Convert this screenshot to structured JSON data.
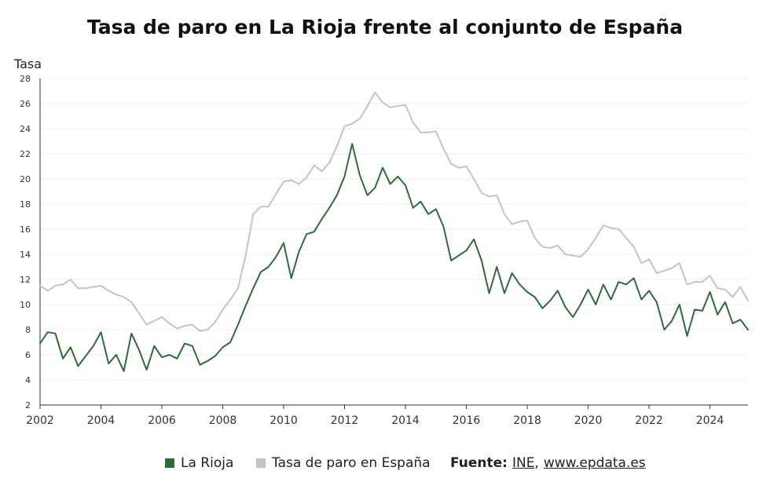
{
  "title": "Tasa de paro en La Rioja frente al conjunto de España",
  "legend": {
    "series1": "La Rioja",
    "series2": "Tasa de paro en España",
    "source_label": "Fuente:",
    "source_ine": "INE",
    "source_sep": ",",
    "source_site": "www.epdata.es"
  },
  "colors": {
    "rioja": "#2e6b36",
    "spain": "#c4c4c4",
    "axis": "#333333",
    "grid": "#ececec"
  },
  "chart_data": {
    "type": "line",
    "ylabel": "Tasa",
    "ylim": [
      2,
      28
    ],
    "yticks": [
      2,
      4,
      6,
      8,
      10,
      12,
      14,
      16,
      18,
      20,
      22,
      24,
      26,
      28
    ],
    "xlim": [
      2002,
      2025.25
    ],
    "xticks": [
      2002,
      2004,
      2006,
      2008,
      2010,
      2012,
      2014,
      2016,
      2018,
      2020,
      2022,
      2024
    ],
    "grid": true,
    "legend": "bottom",
    "series": [
      {
        "name": "La Rioja",
        "x": [
          2002.0,
          2002.25,
          2002.5,
          2002.75,
          2003.0,
          2003.25,
          2003.5,
          2003.75,
          2004.0,
          2004.25,
          2004.5,
          2004.75,
          2005.0,
          2005.25,
          2005.5,
          2005.75,
          2006.0,
          2006.25,
          2006.5,
          2006.75,
          2007.0,
          2007.25,
          2007.5,
          2007.75,
          2008.0,
          2008.25,
          2008.5,
          2008.75,
          2009.0,
          2009.25,
          2009.5,
          2009.75,
          2010.0,
          2010.25,
          2010.5,
          2010.75,
          2011.0,
          2011.25,
          2011.5,
          2011.75,
          2012.0,
          2012.25,
          2012.5,
          2012.75,
          2013.0,
          2013.25,
          2013.5,
          2013.75,
          2014.0,
          2014.25,
          2014.5,
          2014.75,
          2015.0,
          2015.25,
          2015.5,
          2015.75,
          2016.0,
          2016.25,
          2016.5,
          2016.75,
          2017.0,
          2017.25,
          2017.5,
          2017.75,
          2018.0,
          2018.25,
          2018.5,
          2018.75,
          2019.0,
          2019.25,
          2019.5,
          2019.75,
          2020.0,
          2020.25,
          2020.5,
          2020.75,
          2021.0,
          2021.25,
          2021.5,
          2021.75,
          2022.0,
          2022.25,
          2022.5,
          2022.75,
          2023.0,
          2023.25,
          2023.5,
          2023.75,
          2024.0,
          2024.25,
          2024.5,
          2024.75,
          2025.0,
          2025.25
        ],
        "y": [
          6.9,
          7.8,
          7.7,
          5.7,
          6.6,
          5.1,
          5.9,
          6.7,
          7.8,
          5.3,
          6.0,
          4.7,
          7.7,
          6.4,
          4.8,
          6.7,
          5.8,
          6.0,
          5.7,
          6.9,
          6.7,
          5.2,
          5.5,
          5.9,
          6.6,
          7.0,
          8.4,
          9.9,
          11.3,
          12.6,
          13.0,
          13.8,
          14.9,
          12.1,
          14.2,
          15.6,
          15.8,
          16.8,
          17.7,
          18.7,
          20.2,
          22.8,
          20.3,
          18.7,
          19.3,
          20.9,
          19.6,
          20.2,
          19.5,
          17.7,
          18.2,
          17.2,
          17.6,
          16.2,
          13.5,
          13.9,
          14.3,
          15.2,
          13.5,
          10.9,
          13.0,
          10.9,
          12.5,
          11.6,
          11.0,
          10.6,
          9.7,
          10.3,
          11.1,
          9.8,
          9.0,
          10.0,
          11.2,
          10.0,
          11.6,
          10.4,
          11.8,
          11.6,
          12.1,
          10.4,
          11.1,
          10.2,
          8.0,
          8.7,
          10.0,
          7.5,
          9.6,
          9.5,
          11.0,
          9.2,
          10.2,
          8.5,
          8.8,
          8.0
        ]
      },
      {
        "name": "Tasa de paro en España",
        "x": [
          2002.0,
          2002.25,
          2002.5,
          2002.75,
          2003.0,
          2003.25,
          2003.5,
          2003.75,
          2004.0,
          2004.25,
          2004.5,
          2004.75,
          2005.0,
          2005.25,
          2005.5,
          2005.75,
          2006.0,
          2006.25,
          2006.5,
          2006.75,
          2007.0,
          2007.25,
          2007.5,
          2007.75,
          2008.0,
          2008.25,
          2008.5,
          2008.75,
          2009.0,
          2009.25,
          2009.5,
          2009.75,
          2010.0,
          2010.25,
          2010.5,
          2010.75,
          2011.0,
          2011.25,
          2011.5,
          2011.75,
          2012.0,
          2012.25,
          2012.5,
          2012.75,
          2013.0,
          2013.25,
          2013.5,
          2013.75,
          2014.0,
          2014.25,
          2014.5,
          2014.75,
          2015.0,
          2015.25,
          2015.5,
          2015.75,
          2016.0,
          2016.25,
          2016.5,
          2016.75,
          2017.0,
          2017.25,
          2017.5,
          2017.75,
          2018.0,
          2018.25,
          2018.5,
          2018.75,
          2019.0,
          2019.25,
          2019.5,
          2019.75,
          2020.0,
          2020.25,
          2020.5,
          2020.75,
          2021.0,
          2021.25,
          2021.5,
          2021.75,
          2022.0,
          2022.25,
          2022.5,
          2022.75,
          2023.0,
          2023.25,
          2023.5,
          2023.75,
          2024.0,
          2024.25,
          2024.5,
          2024.75,
          2025.0,
          2025.25
        ],
        "y": [
          11.5,
          11.1,
          11.5,
          11.6,
          12.0,
          11.3,
          11.3,
          11.4,
          11.5,
          11.1,
          10.8,
          10.6,
          10.2,
          9.3,
          8.4,
          8.7,
          9.0,
          8.5,
          8.1,
          8.3,
          8.4,
          7.9,
          8.0,
          8.6,
          9.6,
          10.4,
          11.3,
          13.9,
          17.2,
          17.8,
          17.8,
          18.8,
          19.8,
          19.9,
          19.6,
          20.1,
          21.1,
          20.6,
          21.3,
          22.6,
          24.2,
          24.4,
          24.8,
          25.8,
          26.9,
          26.1,
          25.7,
          25.8,
          25.9,
          24.5,
          23.7,
          23.7,
          23.8,
          22.4,
          21.2,
          20.9,
          21.0,
          20.0,
          18.9,
          18.6,
          18.7,
          17.2,
          16.4,
          16.6,
          16.7,
          15.3,
          14.6,
          14.5,
          14.7,
          14.0,
          13.9,
          13.8,
          14.4,
          15.3,
          16.3,
          16.1,
          16.0,
          15.3,
          14.6,
          13.3,
          13.6,
          12.5,
          12.7,
          12.9,
          13.3,
          11.6,
          11.8,
          11.8,
          12.3,
          11.3,
          11.2,
          10.6,
          11.4,
          10.3
        ]
      }
    ]
  }
}
